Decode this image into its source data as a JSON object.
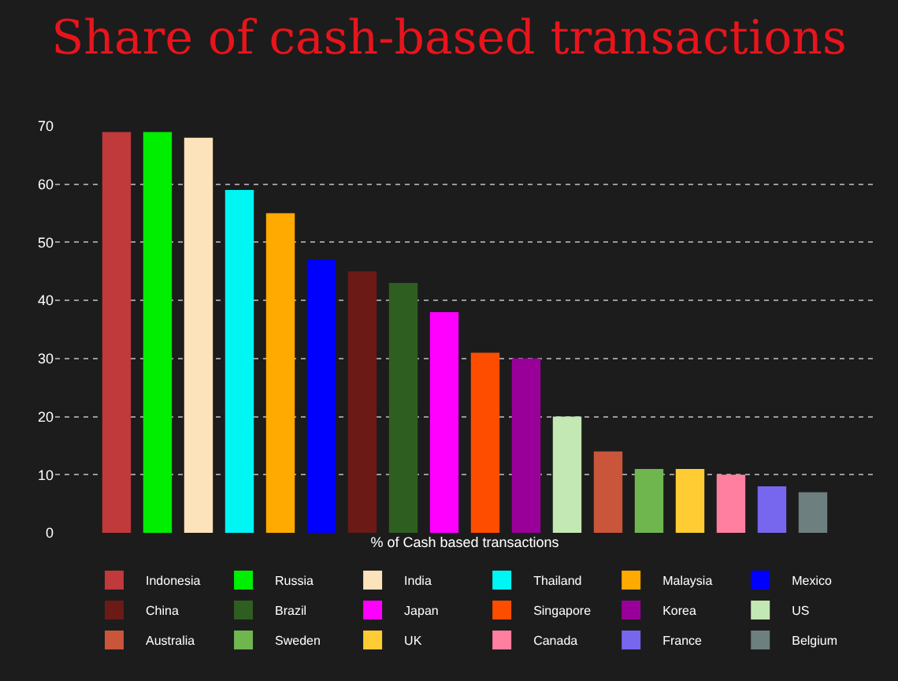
{
  "chart_data": {
    "type": "bar",
    "title": "Share of cash-based transactions",
    "xlabel": "% of Cash based transactions",
    "categories": [
      null
    ],
    "series": [
      {
        "name": "Indonesia",
        "color": "#c0393b",
        "values": [
          69
        ]
      },
      {
        "name": "Russia",
        "color": "#00ee00",
        "values": [
          69
        ]
      },
      {
        "name": "India",
        "color": "#fde3bb",
        "values": [
          68
        ]
      },
      {
        "name": "Thailand",
        "color": "#00f5f5",
        "values": [
          59
        ]
      },
      {
        "name": "Malaysia",
        "color": "#ffaa00",
        "values": [
          55
        ]
      },
      {
        "name": "Mexico",
        "color": "#0000ff",
        "values": [
          47
        ]
      },
      {
        "name": "China",
        "color": "#6b1a16",
        "values": [
          45
        ]
      },
      {
        "name": "Brazil",
        "color": "#2f5f20",
        "values": [
          43
        ]
      },
      {
        "name": "Japan",
        "color": "#ff00ff",
        "values": [
          38
        ]
      },
      {
        "name": "Singapore",
        "color": "#ff4d00",
        "values": [
          31
        ]
      },
      {
        "name": "Korea",
        "color": "#990099",
        "values": [
          30
        ]
      },
      {
        "name": "US",
        "color": "#c4e8b4",
        "values": [
          20
        ]
      },
      {
        "name": "Australia",
        "color": "#c9553a",
        "values": [
          14
        ]
      },
      {
        "name": "Sweden",
        "color": "#6fb64f",
        "values": [
          11
        ]
      },
      {
        "name": "UK",
        "color": "#ffcc33",
        "values": [
          11
        ]
      },
      {
        "name": "Canada",
        "color": "#ff7fa0",
        "values": [
          10
        ]
      },
      {
        "name": "France",
        "color": "#7766ee",
        "values": [
          8
        ]
      },
      {
        "name": "Belgium",
        "color": "#6e7f7f",
        "values": [
          7
        ]
      }
    ],
    "ylim": [
      0,
      70
    ],
    "yticks": [
      0,
      10,
      20,
      30,
      40,
      50,
      60,
      70
    ],
    "grid": "y",
    "legend": "bottom"
  }
}
